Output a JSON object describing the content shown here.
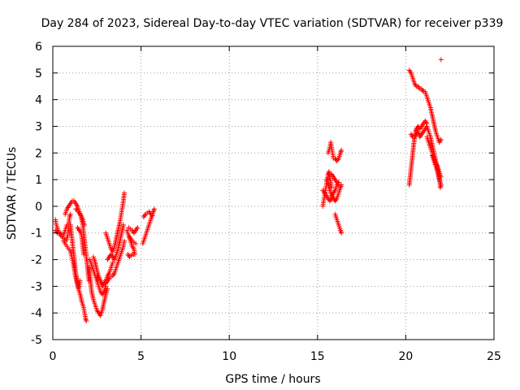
{
  "chart_data": {
    "type": "scatter",
    "title": "Day 284 of 2023, Sidereal Day-to-day VTEC variation (SDTVAR) for receiver p339",
    "xlabel": "GPS time / hours",
    "ylabel": "SDTVAR / TECUs",
    "xlim": [
      0,
      25
    ],
    "ylim": [
      -5,
      6
    ],
    "xticks": [
      0,
      5,
      10,
      15,
      20,
      25
    ],
    "yticks": [
      -5,
      -4,
      -3,
      -2,
      -1,
      0,
      1,
      2,
      3,
      4,
      5,
      6
    ],
    "grid": true,
    "marker": "plus",
    "color": "#ff0000",
    "tracks": [
      [
        [
          0.15,
          -0.5
        ],
        [
          0.2,
          -0.7
        ],
        [
          0.3,
          -0.9
        ],
        [
          0.45,
          -1.1
        ],
        [
          0.6,
          -1.2
        ],
        [
          0.75,
          -1.3
        ],
        [
          0.85,
          -1.1
        ],
        [
          0.9,
          -0.7
        ],
        [
          0.95,
          -0.4
        ],
        [
          1.0,
          -0.3
        ]
      ],
      [
        [
          0.15,
          -0.9
        ],
        [
          0.25,
          -1.0
        ],
        [
          0.35,
          -1.0
        ],
        [
          0.5,
          -1.05
        ],
        [
          0.6,
          -1.1
        ],
        [
          0.7,
          -0.9
        ],
        [
          0.8,
          -0.7
        ]
      ],
      [
        [
          0.6,
          -1.3
        ],
        [
          0.8,
          -1.5
        ],
        [
          1.0,
          -1.7
        ],
        [
          1.15,
          -2.1
        ],
        [
          1.25,
          -2.5
        ],
        [
          1.35,
          -2.8
        ],
        [
          1.45,
          -3.1
        ],
        [
          1.55,
          -3.3
        ],
        [
          1.65,
          -3.6
        ],
        [
          1.75,
          -3.8
        ],
        [
          1.8,
          -4.0
        ],
        [
          1.85,
          -4.2
        ],
        [
          1.9,
          -4.3
        ]
      ],
      [
        [
          0.7,
          -0.3
        ],
        [
          0.8,
          -0.1
        ],
        [
          0.9,
          0.0
        ],
        [
          1.0,
          0.1
        ],
        [
          1.1,
          0.2
        ],
        [
          1.2,
          0.2
        ],
        [
          1.3,
          0.1
        ],
        [
          1.4,
          0.0
        ],
        [
          1.5,
          -0.2
        ],
        [
          1.6,
          -0.4
        ],
        [
          1.7,
          -0.7
        ],
        [
          1.75,
          -1.0
        ],
        [
          1.8,
          -1.3
        ],
        [
          1.85,
          -1.6
        ],
        [
          1.9,
          -1.9
        ],
        [
          1.95,
          -2.2
        ],
        [
          2.0,
          -2.5
        ],
        [
          2.05,
          -2.8
        ]
      ],
      [
        [
          1.0,
          -0.7
        ],
        [
          1.05,
          -1.0
        ],
        [
          1.1,
          -1.3
        ],
        [
          1.15,
          -1.6
        ],
        [
          1.2,
          -1.9
        ],
        [
          1.25,
          -2.2
        ],
        [
          1.3,
          -2.5
        ],
        [
          1.35,
          -2.7
        ],
        [
          1.4,
          -2.9
        ],
        [
          1.45,
          -3.1
        ],
        [
          1.5,
          -3.0
        ],
        [
          1.55,
          -2.8
        ]
      ],
      [
        [
          1.4,
          -0.8
        ],
        [
          1.5,
          -0.9
        ],
        [
          1.6,
          -1.0
        ],
        [
          1.65,
          -1.2
        ],
        [
          1.7,
          -1.5
        ],
        [
          1.75,
          -1.8
        ]
      ],
      [
        [
          1.3,
          -0.1
        ],
        [
          1.45,
          -0.2
        ],
        [
          1.6,
          -0.35
        ],
        [
          1.7,
          -0.5
        ],
        [
          1.8,
          -0.7
        ]
      ],
      [
        [
          2.05,
          -2.3
        ],
        [
          2.1,
          -2.6
        ],
        [
          2.15,
          -2.9
        ],
        [
          2.2,
          -3.2
        ],
        [
          2.3,
          -3.5
        ],
        [
          2.4,
          -3.7
        ],
        [
          2.5,
          -3.9
        ],
        [
          2.6,
          -4.0
        ],
        [
          2.7,
          -4.1
        ],
        [
          2.8,
          -3.9
        ],
        [
          2.9,
          -3.6
        ],
        [
          3.0,
          -3.3
        ],
        [
          3.1,
          -3.1
        ]
      ],
      [
        [
          2.1,
          -2.0
        ],
        [
          2.2,
          -2.2
        ],
        [
          2.3,
          -2.4
        ],
        [
          2.4,
          -2.6
        ],
        [
          2.5,
          -2.8
        ],
        [
          2.6,
          -3.0
        ],
        [
          2.7,
          -3.2
        ],
        [
          2.8,
          -3.3
        ],
        [
          2.9,
          -3.2
        ],
        [
          3.0,
          -3.0
        ]
      ],
      [
        [
          2.3,
          -1.9
        ],
        [
          2.4,
          -2.1
        ],
        [
          2.5,
          -2.4
        ],
        [
          2.6,
          -2.6
        ],
        [
          2.7,
          -2.8
        ],
        [
          2.8,
          -3.0
        ],
        [
          2.9,
          -2.9
        ],
        [
          3.0,
          -2.8
        ],
        [
          3.1,
          -2.6
        ],
        [
          3.2,
          -2.5
        ],
        [
          3.3,
          -2.3
        ],
        [
          3.4,
          -2.1
        ]
      ],
      [
        [
          2.5,
          -2.6
        ],
        [
          2.6,
          -2.75
        ],
        [
          2.7,
          -2.8
        ],
        [
          2.8,
          -2.9
        ],
        [
          2.9,
          -2.85
        ],
        [
          3.0,
          -2.9
        ],
        [
          3.1,
          -2.8
        ],
        [
          3.2,
          -2.7
        ],
        [
          3.3,
          -2.65
        ],
        [
          3.4,
          -2.6
        ],
        [
          3.5,
          -2.5
        ]
      ],
      [
        [
          3.0,
          -1.0
        ],
        [
          3.1,
          -1.2
        ],
        [
          3.2,
          -1.4
        ],
        [
          3.3,
          -1.6
        ],
        [
          3.4,
          -1.7
        ],
        [
          3.5,
          -1.5
        ],
        [
          3.6,
          -1.2
        ],
        [
          3.7,
          -0.9
        ],
        [
          3.8,
          -0.6
        ],
        [
          3.9,
          -0.2
        ],
        [
          4.0,
          0.2
        ],
        [
          4.05,
          0.5
        ]
      ],
      [
        [
          3.1,
          -2.0
        ],
        [
          3.2,
          -1.9
        ],
        [
          3.3,
          -1.8
        ],
        [
          3.4,
          -1.9
        ],
        [
          3.5,
          -2.0
        ],
        [
          3.6,
          -1.8
        ],
        [
          3.7,
          -1.6
        ],
        [
          3.8,
          -1.3
        ],
        [
          3.9,
          -1.0
        ],
        [
          4.0,
          -0.7
        ]
      ],
      [
        [
          3.5,
          -2.5
        ],
        [
          3.6,
          -2.3
        ],
        [
          3.7,
          -2.1
        ],
        [
          3.8,
          -1.9
        ],
        [
          3.9,
          -1.7
        ],
        [
          4.0,
          -1.5
        ],
        [
          4.05,
          -1.3
        ]
      ],
      [
        [
          4.2,
          -0.9
        ],
        [
          4.3,
          -1.1
        ],
        [
          4.4,
          -1.3
        ],
        [
          4.5,
          -1.5
        ],
        [
          4.6,
          -1.6
        ],
        [
          4.65,
          -1.8
        ],
        [
          4.5,
          -1.8
        ],
        [
          4.35,
          -1.9
        ],
        [
          4.25,
          -1.8
        ]
      ],
      [
        [
          4.3,
          -0.8
        ],
        [
          4.4,
          -0.85
        ],
        [
          4.5,
          -0.9
        ],
        [
          4.6,
          -1.0
        ],
        [
          4.7,
          -0.9
        ],
        [
          4.8,
          -0.8
        ]
      ],
      [
        [
          4.3,
          -1.1
        ],
        [
          4.4,
          -1.2
        ],
        [
          4.5,
          -1.3
        ],
        [
          4.6,
          -1.35
        ],
        [
          4.7,
          -1.4
        ]
      ],
      [
        [
          5.1,
          -1.4
        ],
        [
          5.2,
          -1.2
        ],
        [
          5.3,
          -1.0
        ],
        [
          5.4,
          -0.8
        ],
        [
          5.5,
          -0.6
        ],
        [
          5.6,
          -0.4
        ],
        [
          5.7,
          -0.2
        ],
        [
          5.75,
          -0.1
        ]
      ],
      [
        [
          5.15,
          -0.4
        ],
        [
          5.25,
          -0.3
        ],
        [
          5.35,
          -0.25
        ],
        [
          5.45,
          -0.2
        ],
        [
          5.55,
          -0.3
        ],
        [
          5.65,
          -0.35
        ]
      ],
      [
        [
          15.3,
          0.0
        ],
        [
          15.35,
          0.2
        ],
        [
          15.4,
          0.4
        ],
        [
          15.45,
          0.6
        ],
        [
          15.5,
          0.8
        ],
        [
          15.55,
          1.0
        ],
        [
          15.6,
          1.2
        ],
        [
          15.65,
          1.3
        ],
        [
          15.7,
          1.1
        ],
        [
          15.75,
          0.9
        ],
        [
          15.8,
          0.7
        ]
      ],
      [
        [
          15.3,
          0.6
        ],
        [
          15.4,
          0.5
        ],
        [
          15.5,
          0.4
        ],
        [
          15.6,
          0.3
        ],
        [
          15.7,
          0.2
        ],
        [
          15.8,
          0.3
        ],
        [
          15.9,
          0.5
        ],
        [
          16.0,
          0.6
        ],
        [
          16.1,
          0.8
        ],
        [
          16.2,
          0.9
        ]
      ],
      [
        [
          15.5,
          1.0
        ],
        [
          15.6,
          0.8
        ],
        [
          15.7,
          0.6
        ],
        [
          15.8,
          0.4
        ],
        [
          15.9,
          0.3
        ],
        [
          16.0,
          0.2
        ],
        [
          16.1,
          0.3
        ],
        [
          16.2,
          0.5
        ],
        [
          16.3,
          0.7
        ],
        [
          16.35,
          0.8
        ]
      ],
      [
        [
          15.6,
          2.0
        ],
        [
          15.7,
          2.2
        ],
        [
          15.75,
          2.4
        ],
        [
          15.8,
          2.2
        ],
        [
          15.85,
          2.0
        ],
        [
          15.9,
          1.8
        ],
        [
          16.0,
          1.8
        ],
        [
          16.1,
          1.7
        ],
        [
          16.2,
          1.8
        ],
        [
          16.3,
          2.0
        ],
        [
          16.35,
          2.1
        ]
      ],
      [
        [
          15.8,
          1.2
        ],
        [
          15.9,
          1.1
        ],
        [
          16.0,
          1.0
        ],
        [
          16.1,
          0.9
        ],
        [
          16.2,
          0.8
        ]
      ],
      [
        [
          16.0,
          -0.3
        ],
        [
          16.1,
          -0.5
        ],
        [
          16.2,
          -0.7
        ],
        [
          16.3,
          -0.9
        ],
        [
          16.35,
          -1.0
        ]
      ],
      [
        [
          20.2,
          0.8
        ],
        [
          20.25,
          1.1
        ],
        [
          20.3,
          1.4
        ],
        [
          20.35,
          1.7
        ],
        [
          20.4,
          2.0
        ],
        [
          20.45,
          2.3
        ],
        [
          20.5,
          2.6
        ],
        [
          20.55,
          2.8
        ],
        [
          20.6,
          2.9
        ],
        [
          20.7,
          3.0
        ],
        [
          20.8,
          2.9
        ],
        [
          20.9,
          3.0
        ],
        [
          21.0,
          3.1
        ],
        [
          21.1,
          3.2
        ],
        [
          21.2,
          3.1
        ]
      ],
      [
        [
          20.2,
          5.1
        ],
        [
          20.3,
          5.0
        ],
        [
          20.4,
          4.8
        ],
        [
          20.5,
          4.6
        ],
        [
          20.6,
          4.5
        ],
        [
          20.7,
          4.5
        ],
        [
          20.8,
          4.4
        ],
        [
          20.9,
          4.4
        ],
        [
          21.0,
          4.3
        ],
        [
          21.1,
          4.3
        ],
        [
          21.2,
          4.1
        ],
        [
          21.3,
          3.9
        ],
        [
          21.4,
          3.7
        ],
        [
          21.5,
          3.4
        ],
        [
          21.6,
          3.1
        ],
        [
          21.7,
          2.8
        ],
        [
          21.8,
          2.6
        ],
        [
          21.9,
          2.4
        ],
        [
          22.0,
          2.5
        ]
      ],
      [
        [
          20.3,
          2.7
        ],
        [
          20.4,
          2.6
        ],
        [
          20.5,
          2.6
        ],
        [
          20.6,
          2.7
        ],
        [
          20.7,
          2.8
        ],
        [
          20.8,
          2.6
        ],
        [
          20.9,
          2.7
        ],
        [
          21.0,
          2.8
        ],
        [
          21.1,
          2.9
        ],
        [
          21.2,
          3.0
        ],
        [
          21.3,
          2.8
        ],
        [
          21.4,
          2.6
        ],
        [
          21.5,
          2.3
        ],
        [
          21.6,
          2.0
        ],
        [
          21.7,
          1.7
        ],
        [
          21.8,
          1.4
        ],
        [
          21.9,
          1.1
        ],
        [
          21.95,
          0.8
        ]
      ],
      [
        [
          21.2,
          2.6
        ],
        [
          21.3,
          2.4
        ],
        [
          21.4,
          2.2
        ],
        [
          21.5,
          2.0
        ],
        [
          21.6,
          1.8
        ],
        [
          21.7,
          1.6
        ],
        [
          21.8,
          1.5
        ],
        [
          21.9,
          1.3
        ],
        [
          22.0,
          1.1
        ]
      ],
      [
        [
          21.5,
          1.9
        ],
        [
          21.6,
          1.7
        ],
        [
          21.7,
          1.5
        ],
        [
          21.8,
          1.3
        ],
        [
          21.9,
          1.0
        ],
        [
          22.0,
          0.8
        ],
        [
          21.95,
          0.7
        ]
      ],
      [
        [
          22.0,
          5.5
        ]
      ]
    ]
  }
}
